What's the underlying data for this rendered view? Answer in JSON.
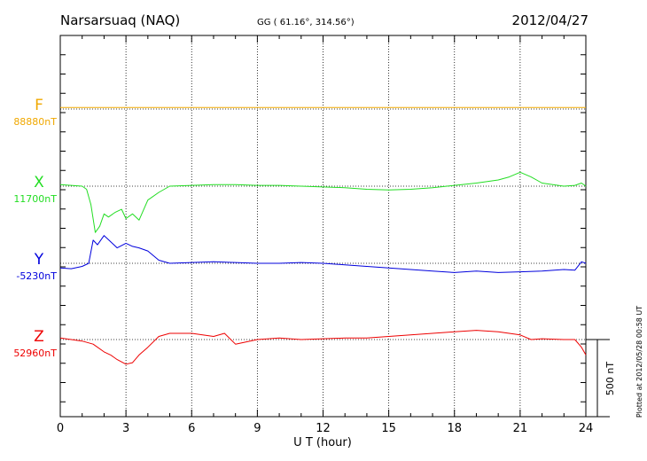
{
  "header": {
    "station": "Narsarsuaq (NAQ)",
    "coords": "GG ( 61.16°, 314.56°)",
    "date": "2012/04/27"
  },
  "plotted_note": "Plotted at 2012/05/28 00:58 UT",
  "scale_label": "500 nT",
  "chart_data": {
    "type": "line",
    "xlabel": "U T (hour)",
    "xlim": [
      0,
      24
    ],
    "xticks": [
      0,
      3,
      6,
      9,
      12,
      15,
      18,
      21,
      24
    ],
    "grid": "dotted-vertical",
    "scale_bar_nT": 500,
    "series": [
      {
        "name": "F",
        "baseline_label": "88880nT",
        "color": "#f0a800",
        "x": [
          0,
          24
        ],
        "y": [
          10,
          10
        ]
      },
      {
        "name": "X",
        "baseline_label": "11700nT",
        "color": "#22dd22",
        "x": [
          0,
          0.5,
          1.0,
          1.2,
          1.4,
          1.6,
          1.8,
          2.0,
          2.2,
          2.5,
          2.8,
          3.0,
          3.3,
          3.6,
          4.0,
          4.5,
          5.0,
          6.0,
          7.0,
          8.0,
          9.0,
          10.0,
          11.0,
          12.0,
          13.0,
          14.0,
          15.0,
          16.0,
          17.0,
          18.0,
          19.0,
          20.0,
          20.5,
          21.0,
          21.5,
          22.0,
          23.0,
          23.5,
          23.8,
          24.0
        ],
        "y": [
          10,
          5,
          0,
          -20,
          -120,
          -300,
          -260,
          -180,
          -200,
          -170,
          -150,
          -210,
          -180,
          -220,
          -90,
          -40,
          0,
          5,
          10,
          10,
          5,
          5,
          0,
          -5,
          -10,
          -20,
          -25,
          -20,
          -10,
          5,
          20,
          40,
          60,
          90,
          60,
          20,
          0,
          5,
          20,
          0
        ]
      },
      {
        "name": "Y",
        "baseline_label": "-5230nT",
        "color": "#0000dd",
        "x": [
          0,
          0.5,
          1.0,
          1.3,
          1.5,
          1.7,
          2.0,
          2.3,
          2.6,
          3.0,
          3.3,
          3.6,
          4.0,
          4.5,
          5.0,
          6.0,
          7.0,
          8.0,
          9.0,
          10.0,
          11.0,
          12.0,
          13.0,
          14.0,
          15.0,
          16.0,
          17.0,
          18.0,
          19.0,
          20.0,
          21.0,
          22.0,
          23.0,
          23.5,
          23.8,
          24.0
        ],
        "y": [
          -30,
          -35,
          -20,
          0,
          150,
          120,
          180,
          140,
          100,
          130,
          110,
          100,
          80,
          20,
          0,
          5,
          10,
          5,
          0,
          0,
          5,
          0,
          -10,
          -20,
          -30,
          -40,
          -50,
          -60,
          -50,
          -60,
          -55,
          -50,
          -40,
          -45,
          10,
          0
        ]
      },
      {
        "name": "Z",
        "baseline_label": "52960nT",
        "color": "#ee0000",
        "x": [
          0,
          0.5,
          1.0,
          1.5,
          2.0,
          2.3,
          2.6,
          3.0,
          3.3,
          3.6,
          4.0,
          4.5,
          5.0,
          6.0,
          7.0,
          7.5,
          8.0,
          9.0,
          10.0,
          11.0,
          12.0,
          13.0,
          14.0,
          15.0,
          16.0,
          17.0,
          18.0,
          19.0,
          20.0,
          21.0,
          21.5,
          22.0,
          23.0,
          23.5,
          23.8,
          24.0
        ],
        "y": [
          10,
          0,
          -10,
          -30,
          -80,
          -100,
          -130,
          -160,
          -150,
          -100,
          -50,
          20,
          40,
          40,
          20,
          40,
          -30,
          0,
          10,
          0,
          5,
          10,
          10,
          20,
          30,
          40,
          50,
          60,
          50,
          30,
          0,
          5,
          0,
          0,
          -50,
          -100
        ]
      }
    ]
  }
}
